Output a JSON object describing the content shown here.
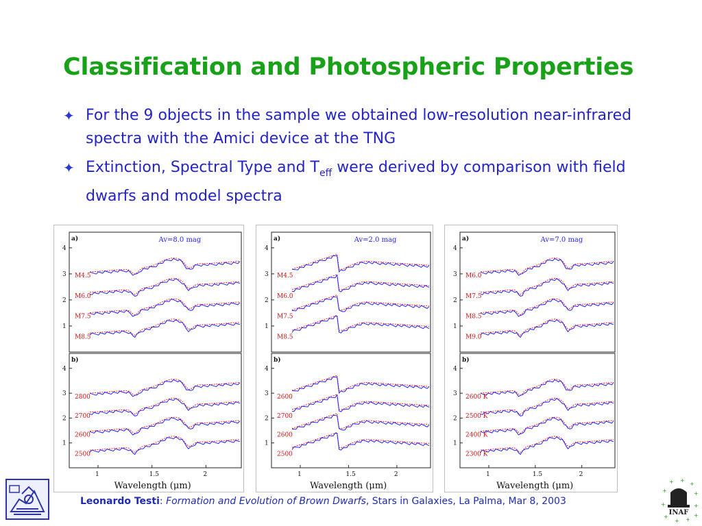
{
  "title": "Classification and Photospheric Properties",
  "bullets": {
    "b1": "For the 9 objects in the sample we obtained low-resolution near-infrared spectra with the Amici device at the TNG",
    "b2_pre": "Extinction, Spectral Type and T",
    "b2_sub": "eff",
    "b2_post": " were derived by comparison with field dwarfs and model spectra"
  },
  "footer": {
    "author": "Leonardo Testi",
    "sep": ": ",
    "work": "Formation and Evolution of Brown Dwarfs",
    "rest": ", Stars in Galaxies, La Palma, Mar 8, 2003"
  },
  "logo_right_text": "INAF",
  "colors": {
    "title": "#1aa11a",
    "bullet_text": "#2323c8",
    "observed": "#2020ff",
    "model": "#ff2020"
  },
  "chart_data": [
    {
      "type": "line",
      "xlabel": "Wavelength (μm)",
      "xticks": [
        "1",
        "1.5",
        "2"
      ],
      "yticks": [
        "1",
        "2",
        "3",
        "4"
      ],
      "panel_a": {
        "label": "a)",
        "annotation": "Av=8.0 mag",
        "spectra": [
          "M4.5",
          "M6.0",
          "M7.5",
          "M8.5"
        ]
      },
      "panel_b": {
        "label": "b)",
        "spectra": [
          "2800",
          "2700",
          "2600",
          "2500"
        ]
      }
    },
    {
      "type": "line",
      "xlabel": "Wavelength (μm)",
      "xticks": [
        "1",
        "1.5",
        "2"
      ],
      "yticks": [
        "1",
        "2",
        "3",
        "4"
      ],
      "panel_a": {
        "label": "a)",
        "annotation": "Av=2.0 mag",
        "spectra": [
          "M4.5",
          "M6.0",
          "M7.5",
          "M8.5"
        ]
      },
      "panel_b": {
        "label": "b)",
        "spectra": [
          "2600",
          "2700",
          "2600",
          "2500"
        ]
      }
    },
    {
      "type": "line",
      "xlabel": "Wavelength (μm)",
      "xticks": [
        "1",
        "1.5",
        "2"
      ],
      "yticks": [
        "1",
        "2",
        "3",
        "4"
      ],
      "panel_a": {
        "label": "a)",
        "annotation": "Av=7.0 mag",
        "spectra": [
          "M6.0",
          "M7.5",
          "M8.5",
          "M9.0"
        ]
      },
      "panel_b": {
        "label": "b)",
        "spectra": [
          "2600 K",
          "2500 K",
          "2400 K",
          "2300 K"
        ]
      }
    }
  ]
}
